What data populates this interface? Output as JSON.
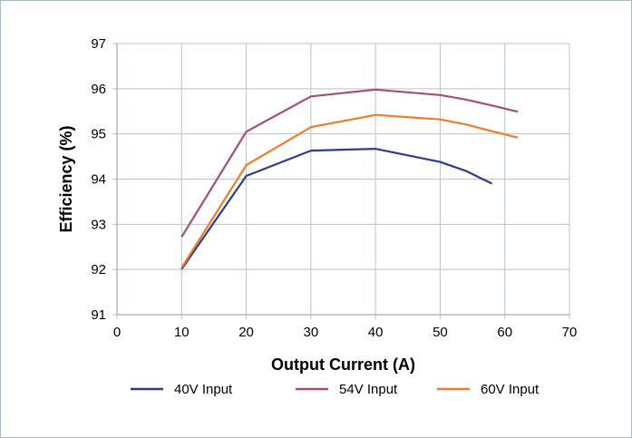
{
  "chart_data": {
    "type": "line",
    "title": "",
    "xlabel": "Output Current (A)",
    "ylabel": "Efficiency (%)",
    "xlim": [
      0,
      70
    ],
    "ylim": [
      91,
      97
    ],
    "xticks": [
      "0",
      "10",
      "20",
      "30",
      "40",
      "50",
      "60",
      "70"
    ],
    "yticks": [
      "91",
      "92",
      "93",
      "94",
      "95",
      "96",
      "97"
    ],
    "grid": true,
    "legend_position": "bottom",
    "series": [
      {
        "name": "40V Input",
        "color": "#2e3b8f",
        "x": [
          10,
          20,
          30,
          40,
          50,
          54,
          58
        ],
        "y": [
          92.01,
          94.07,
          94.63,
          94.67,
          94.38,
          94.18,
          93.9
        ]
      },
      {
        "name": "54V Input",
        "color": "#a64d79",
        "x": [
          10,
          20,
          30,
          40,
          50,
          54,
          58,
          62
        ],
        "y": [
          92.72,
          95.05,
          95.83,
          95.98,
          95.86,
          95.76,
          95.63,
          95.49
        ]
      },
      {
        "name": "60V Input",
        "color": "#ed7d2b",
        "x": [
          10,
          20,
          30,
          40,
          50,
          54,
          58,
          62
        ],
        "y": [
          92.04,
          94.31,
          95.15,
          95.42,
          95.32,
          95.21,
          95.06,
          94.92
        ]
      }
    ]
  }
}
